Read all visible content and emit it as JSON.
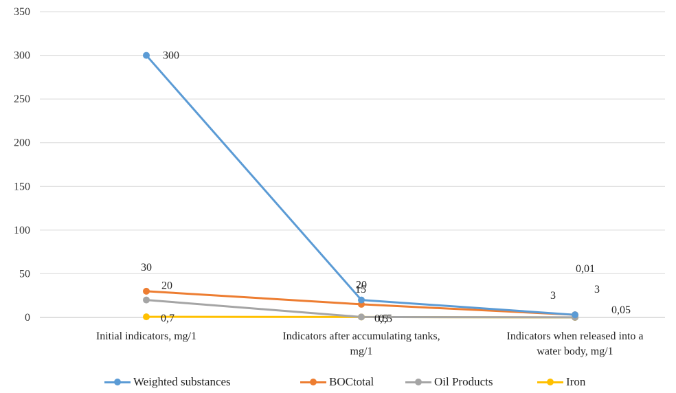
{
  "chart_data": {
    "type": "line",
    "categories": [
      [
        "Initial indicators, mg/1"
      ],
      [
        "Indicators after accumulating tanks,",
        "mg/1"
      ],
      [
        "Indicators when released into a",
        "water body, mg/1"
      ]
    ],
    "ylim": [
      0,
      350
    ],
    "yticks": [
      0,
      50,
      100,
      150,
      200,
      250,
      300,
      350
    ],
    "grid": true,
    "legend_position": "bottom",
    "series": [
      {
        "name": "Weighted substances",
        "color": "#5B9BD5",
        "values": [
          300,
          20,
          3
        ],
        "labels": [
          "300",
          "20",
          "3"
        ]
      },
      {
        "name": "BOCtotal",
        "color": "#ED7D31",
        "values": [
          30,
          15,
          3
        ],
        "labels": [
          "30",
          "15",
          "3"
        ]
      },
      {
        "name": "Oil Products",
        "color": "#A5A5A5",
        "values": [
          20,
          0.5,
          0.05
        ],
        "labels": [
          "20",
          "0,5",
          "0,05"
        ]
      },
      {
        "name": "Iron",
        "color": "#FFC000",
        "values": [
          0.7,
          0.5,
          0.01
        ],
        "labels": [
          "0,7",
          "0,5",
          "0,01"
        ]
      }
    ]
  }
}
